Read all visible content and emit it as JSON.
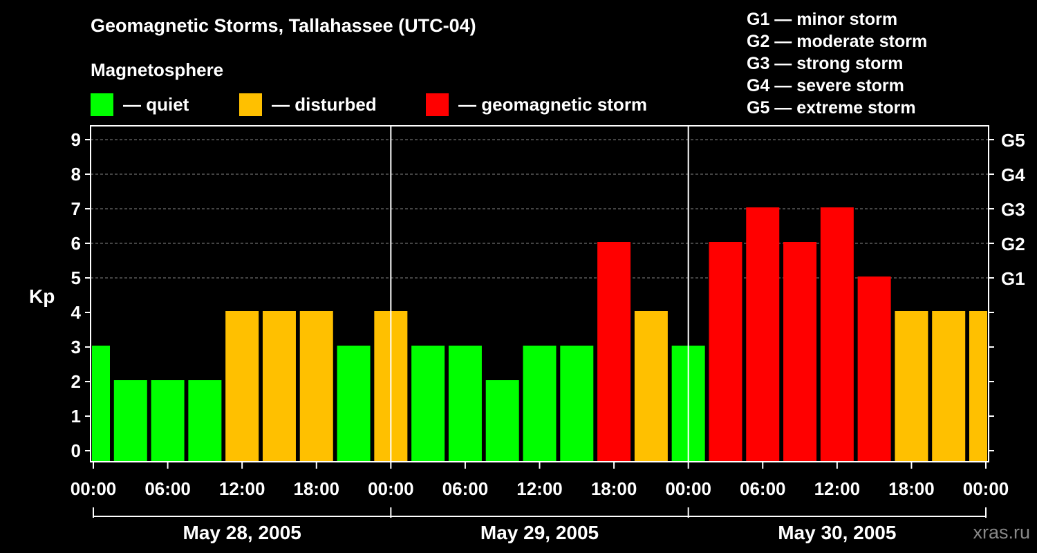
{
  "header": {
    "title": "Geomagnetic Storms, Tallahassee (UTC-04)",
    "magnetosphere_label": "Magnetosphere",
    "legend": [
      {
        "label": "— quiet",
        "color": "#00ff00"
      },
      {
        "label": "— disturbed",
        "color": "#ffc000"
      },
      {
        "label": "— geomagnetic storm",
        "color": "#ff0000"
      }
    ]
  },
  "storm_scale": [
    "G1 — minor storm",
    "G2 — moderate storm",
    "G3 — strong storm",
    "G4 — severe storm",
    "G5 — extreme storm"
  ],
  "watermark": "xras.ru",
  "chart_data": {
    "type": "bar",
    "ylabel": "Kp",
    "ylim": [
      0,
      9
    ],
    "y_ticks": [
      "0",
      "1",
      "2",
      "3",
      "4",
      "5",
      "6",
      "7",
      "8",
      "9"
    ],
    "right_ticks": [
      {
        "kp": 5,
        "label": "G1"
      },
      {
        "kp": 6,
        "label": "G2"
      },
      {
        "kp": 7,
        "label": "G3"
      },
      {
        "kp": 8,
        "label": "G4"
      },
      {
        "kp": 9,
        "label": "G5"
      }
    ],
    "x_tick_labels": [
      "00:00",
      "06:00",
      "12:00",
      "18:00",
      "00:00",
      "06:00",
      "12:00",
      "18:00",
      "00:00",
      "06:00",
      "12:00",
      "18:00",
      "00:00"
    ],
    "days": [
      "May 28, 2005",
      "May 29, 2005",
      "May 30, 2005"
    ],
    "grid": "horizontal dashed at Kp 5-9",
    "colors": {
      "quiet": "#00ff00",
      "disturbed": "#ffc000",
      "storm": "#ff0000"
    },
    "series": [
      {
        "values": [
          3,
          2,
          2,
          2,
          4,
          4,
          4,
          3,
          4,
          3,
          3,
          2,
          3,
          3,
          6,
          4,
          3,
          6,
          7,
          6,
          7,
          5,
          4,
          4,
          4
        ]
      }
    ]
  }
}
